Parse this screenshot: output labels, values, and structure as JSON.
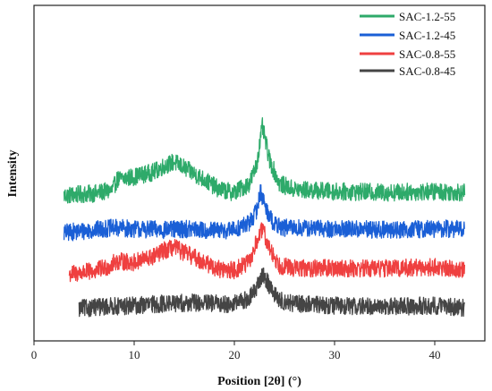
{
  "chart_data": {
    "type": "line",
    "xlabel": "Position [2θ] (°)",
    "ylabel": "Intensity",
    "xlim": [
      0,
      45
    ],
    "xticks": [
      0,
      10,
      20,
      30,
      40
    ],
    "y_ticks_shown": false,
    "grid": false,
    "legend_position": "top-right",
    "offset_traces": true,
    "series": [
      {
        "name": "SAC-1.2-55",
        "color": "#2eaa6a",
        "baseline": 6.3,
        "x": [
          3,
          6,
          7.8,
          8.3,
          10,
          12,
          13,
          14,
          15,
          17,
          18.5,
          20,
          21.5,
          22.2,
          22.8,
          23.5,
          24.5,
          26,
          30,
          35,
          40,
          43
        ],
        "y_rel": [
          0,
          0.1,
          0.25,
          0.8,
          0.95,
          1.2,
          1.5,
          1.7,
          1.4,
          0.8,
          0.3,
          0.15,
          0.6,
          1.5,
          3.5,
          1.8,
          0.6,
          0.3,
          0.2,
          0.15,
          0.2,
          0.15
        ]
      },
      {
        "name": "SAC-1.2-45",
        "color": "#1a5fd6",
        "baseline": 4.3,
        "x": [
          3,
          6,
          8,
          10,
          13,
          15,
          18,
          20,
          21.5,
          22.2,
          22.6,
          23.2,
          24,
          25,
          30,
          35,
          40,
          43
        ],
        "y_rel": [
          0.1,
          0.25,
          0.35,
          0.3,
          0.25,
          0.3,
          0.2,
          0.25,
          0.6,
          1.2,
          2.2,
          1.3,
          0.5,
          0.35,
          0.3,
          0.25,
          0.3,
          0.3
        ]
      },
      {
        "name": "SAC-0.8-55",
        "color": "#ef4040",
        "baseline": 2.3,
        "x": [
          3.5,
          6,
          7.5,
          8.2,
          10,
          12,
          13,
          14,
          15,
          17,
          18.5,
          20,
          21.5,
          22.2,
          22.8,
          23.5,
          24.5,
          26,
          30,
          35,
          40,
          43
        ],
        "y_rel": [
          0,
          0.15,
          0.4,
          0.65,
          0.6,
          0.9,
          1.2,
          1.35,
          1.1,
          0.6,
          0.25,
          0.2,
          0.6,
          1.6,
          2.3,
          1.3,
          0.45,
          0.3,
          0.3,
          0.3,
          0.35,
          0.25
        ]
      },
      {
        "name": "SAC-0.8-45",
        "color": "#454545",
        "baseline": 0.5,
        "x": [
          4.5,
          7,
          10,
          13,
          16,
          18,
          20,
          21.5,
          22.3,
          22.9,
          23.6,
          24.5,
          26,
          30,
          35,
          40,
          43
        ],
        "y_rel": [
          0.05,
          0.15,
          0.2,
          0.3,
          0.35,
          0.3,
          0.3,
          0.55,
          1.2,
          1.8,
          1.1,
          0.45,
          0.3,
          0.2,
          0.15,
          0.2,
          0.1
        ]
      }
    ]
  }
}
